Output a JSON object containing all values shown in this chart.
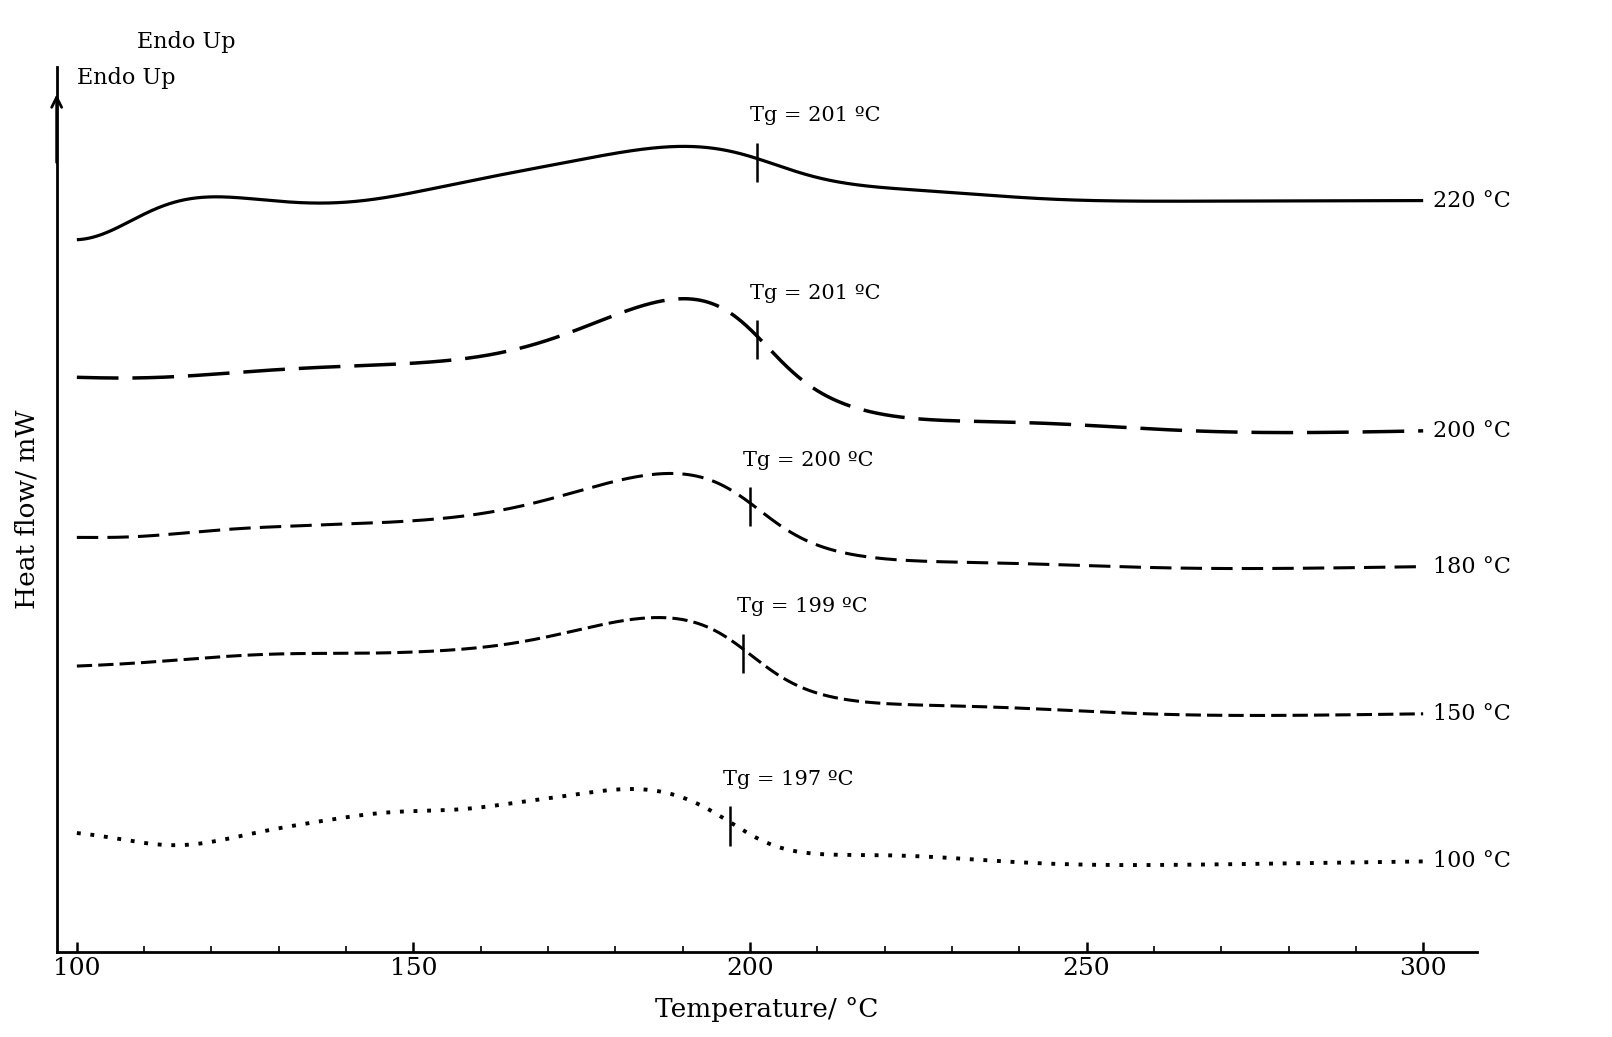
{
  "xlabel": "Temperature/ °C",
  "ylabel": "Heat flow/ mW",
  "endo_up_label": "Endo Up",
  "xlim": [
    100,
    300
  ],
  "ylim": [
    -5,
    13
  ],
  "x_ticks": [
    100,
    150,
    200,
    250,
    300
  ],
  "curves": [
    {
      "label": "220 °C",
      "tg_label": "Tg = 201 ºC",
      "tg_x": 201,
      "base_y": 10.5,
      "linestyle_key": "solid",
      "linewidth": 2.3
    },
    {
      "label": "200 °C",
      "tg_label": "Tg = 201 ºC",
      "tg_x": 201,
      "base_y": 6.8,
      "linestyle_key": "long_dash",
      "linewidth": 2.5
    },
    {
      "label": "180 °C",
      "tg_label": "Tg = 200 ºC",
      "tg_x": 200,
      "base_y": 3.5,
      "linestyle_key": "med_dash",
      "linewidth": 2.2
    },
    {
      "label": "150 °C",
      "tg_label": "Tg = 199 ºC",
      "tg_x": 199,
      "base_y": 0.8,
      "linestyle_key": "short_dash",
      "linewidth": 2.2
    },
    {
      "label": "100 °C",
      "tg_label": "Tg = 197 ºC",
      "tg_x": 197,
      "base_y": -2.5,
      "linestyle_key": "dotted",
      "linewidth": 2.5
    }
  ]
}
